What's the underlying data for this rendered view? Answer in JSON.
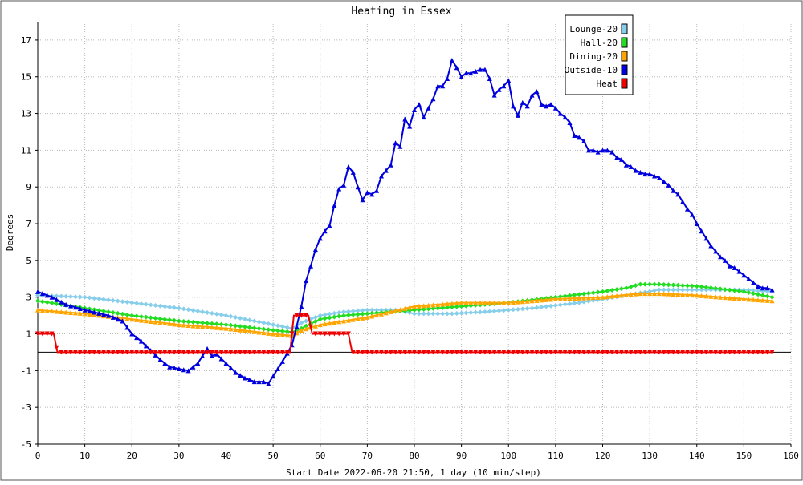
{
  "chart_data": {
    "type": "line",
    "title": "Heating in Essex",
    "xlabel": "Start Date 2022-06-20 21:50, 1 day (10 min/step)",
    "ylabel": "Degrees",
    "xlim": [
      0,
      160
    ],
    "ylim": [
      -5,
      18
    ],
    "x_ticks": [
      0,
      10,
      20,
      30,
      40,
      50,
      60,
      70,
      80,
      90,
      100,
      110,
      120,
      130,
      140,
      150,
      160
    ],
    "y_ticks": [
      -5,
      -3,
      -1,
      1,
      3,
      5,
      7,
      9,
      11,
      13,
      15,
      17
    ],
    "grid": true,
    "legend_position": "top-right",
    "series": [
      {
        "name": "Lounge-20",
        "color": "#87ceeb",
        "marker": "diamond",
        "keypoints": [
          [
            0,
            3.1
          ],
          [
            10,
            3.0
          ],
          [
            20,
            2.7
          ],
          [
            30,
            2.4
          ],
          [
            40,
            2.0
          ],
          [
            50,
            1.5
          ],
          [
            54,
            1.3
          ],
          [
            56,
            1.6
          ],
          [
            60,
            2.0
          ],
          [
            65,
            2.2
          ],
          [
            70,
            2.3
          ],
          [
            76,
            2.3
          ],
          [
            80,
            2.1
          ],
          [
            88,
            2.1
          ],
          [
            95,
            2.2
          ],
          [
            105,
            2.4
          ],
          [
            115,
            2.7
          ],
          [
            125,
            3.1
          ],
          [
            132,
            3.4
          ],
          [
            140,
            3.4
          ],
          [
            150,
            3.4
          ],
          [
            156,
            3.3
          ]
        ]
      },
      {
        "name": "Hall-20",
        "color": "#22dd22",
        "marker": "diamond",
        "keypoints": [
          [
            0,
            2.8
          ],
          [
            10,
            2.4
          ],
          [
            20,
            2.0
          ],
          [
            30,
            1.7
          ],
          [
            40,
            1.5
          ],
          [
            50,
            1.2
          ],
          [
            54,
            1.1
          ],
          [
            56,
            1.3
          ],
          [
            60,
            1.8
          ],
          [
            65,
            2.0
          ],
          [
            70,
            2.1
          ],
          [
            80,
            2.3
          ],
          [
            90,
            2.5
          ],
          [
            100,
            2.7
          ],
          [
            110,
            3.0
          ],
          [
            120,
            3.3
          ],
          [
            125,
            3.5
          ],
          [
            128,
            3.7
          ],
          [
            132,
            3.7
          ],
          [
            140,
            3.6
          ],
          [
            150,
            3.3
          ],
          [
            156,
            3.0
          ]
        ]
      },
      {
        "name": "Dining-20",
        "color": "#ffa500",
        "marker": "triangle",
        "keypoints": [
          [
            0,
            2.3
          ],
          [
            10,
            2.1
          ],
          [
            20,
            1.8
          ],
          [
            30,
            1.5
          ],
          [
            40,
            1.3
          ],
          [
            50,
            1.0
          ],
          [
            54,
            0.9
          ],
          [
            56,
            1.2
          ],
          [
            60,
            1.5
          ],
          [
            65,
            1.7
          ],
          [
            70,
            1.9
          ],
          [
            75,
            2.2
          ],
          [
            80,
            2.5
          ],
          [
            90,
            2.7
          ],
          [
            100,
            2.7
          ],
          [
            110,
            2.9
          ],
          [
            120,
            3.0
          ],
          [
            128,
            3.2
          ],
          [
            132,
            3.2
          ],
          [
            140,
            3.1
          ],
          [
            150,
            2.9
          ],
          [
            156,
            2.8
          ]
        ]
      },
      {
        "name": "Outside-10",
        "color": "#0000dd",
        "marker": "triangle",
        "keypoints": [
          [
            0,
            3.3
          ],
          [
            3,
            3.0
          ],
          [
            6,
            2.6
          ],
          [
            10,
            2.3
          ],
          [
            15,
            2.0
          ],
          [
            18,
            1.7
          ],
          [
            20,
            1.0
          ],
          [
            22,
            0.6
          ],
          [
            24,
            0.1
          ],
          [
            26,
            -0.4
          ],
          [
            28,
            -0.8
          ],
          [
            30,
            -0.9
          ],
          [
            32,
            -1.0
          ],
          [
            34,
            -0.6
          ],
          [
            36,
            0.2
          ],
          [
            37,
            -0.2
          ],
          [
            38,
            -0.1
          ],
          [
            40,
            -0.6
          ],
          [
            42,
            -1.1
          ],
          [
            44,
            -1.4
          ],
          [
            46,
            -1.6
          ],
          [
            48,
            -1.6
          ],
          [
            49,
            -1.7
          ],
          [
            50,
            -1.3
          ],
          [
            52,
            -0.5
          ],
          [
            54,
            0.4
          ],
          [
            55,
            1.4
          ],
          [
            56,
            2.5
          ],
          [
            57,
            3.9
          ],
          [
            58,
            4.7
          ],
          [
            59,
            5.6
          ],
          [
            60,
            6.2
          ],
          [
            61,
            6.6
          ],
          [
            62,
            6.9
          ],
          [
            63,
            8.0
          ],
          [
            64,
            8.9
          ],
          [
            65,
            9.1
          ],
          [
            66,
            10.1
          ],
          [
            67,
            9.8
          ],
          [
            68,
            9.0
          ],
          [
            69,
            8.3
          ],
          [
            70,
            8.7
          ],
          [
            71,
            8.6
          ],
          [
            72,
            8.8
          ],
          [
            73,
            9.6
          ],
          [
            74,
            9.9
          ],
          [
            75,
            10.2
          ],
          [
            76,
            11.4
          ],
          [
            77,
            11.2
          ],
          [
            78,
            12.7
          ],
          [
            79,
            12.3
          ],
          [
            80,
            13.2
          ],
          [
            81,
            13.5
          ],
          [
            82,
            12.8
          ],
          [
            83,
            13.3
          ],
          [
            84,
            13.8
          ],
          [
            85,
            14.5
          ],
          [
            86,
            14.5
          ],
          [
            87,
            14.9
          ],
          [
            88,
            15.9
          ],
          [
            89,
            15.5
          ],
          [
            90,
            15.0
          ],
          [
            91,
            15.2
          ],
          [
            92,
            15.2
          ],
          [
            93,
            15.3
          ],
          [
            94,
            15.4
          ],
          [
            95,
            15.4
          ],
          [
            96,
            14.9
          ],
          [
            97,
            14.0
          ],
          [
            98,
            14.3
          ],
          [
            99,
            14.5
          ],
          [
            100,
            14.8
          ],
          [
            101,
            13.4
          ],
          [
            102,
            12.9
          ],
          [
            103,
            13.6
          ],
          [
            104,
            13.4
          ],
          [
            105,
            14.0
          ],
          [
            106,
            14.2
          ],
          [
            107,
            13.5
          ],
          [
            108,
            13.4
          ],
          [
            109,
            13.5
          ],
          [
            110,
            13.3
          ],
          [
            111,
            13.0
          ],
          [
            112,
            12.8
          ],
          [
            113,
            12.5
          ],
          [
            114,
            11.8
          ],
          [
            115,
            11.7
          ],
          [
            116,
            11.5
          ],
          [
            117,
            11.0
          ],
          [
            118,
            11.0
          ],
          [
            119,
            10.9
          ],
          [
            120,
            11.0
          ],
          [
            121,
            11.0
          ],
          [
            122,
            10.9
          ],
          [
            123,
            10.6
          ],
          [
            124,
            10.5
          ],
          [
            125,
            10.2
          ],
          [
            126,
            10.1
          ],
          [
            127,
            9.9
          ],
          [
            128,
            9.8
          ],
          [
            129,
            9.7
          ],
          [
            130,
            9.7
          ],
          [
            131,
            9.6
          ],
          [
            132,
            9.5
          ],
          [
            133,
            9.3
          ],
          [
            134,
            9.1
          ],
          [
            135,
            8.8
          ],
          [
            136,
            8.6
          ],
          [
            137,
            8.2
          ],
          [
            138,
            7.8
          ],
          [
            139,
            7.5
          ],
          [
            140,
            7.0
          ],
          [
            141,
            6.6
          ],
          [
            142,
            6.2
          ],
          [
            143,
            5.8
          ],
          [
            144,
            5.5
          ],
          [
            145,
            5.2
          ],
          [
            146,
            5.0
          ],
          [
            147,
            4.7
          ],
          [
            148,
            4.6
          ],
          [
            149,
            4.4
          ],
          [
            150,
            4.2
          ],
          [
            151,
            4.0
          ],
          [
            152,
            3.8
          ],
          [
            153,
            3.6
          ],
          [
            154,
            3.5
          ],
          [
            155,
            3.5
          ],
          [
            156,
            3.4
          ]
        ]
      },
      {
        "name": "Heat",
        "color": "#ee0000",
        "marker": "triangle-down",
        "keypoints": [
          [
            0,
            1
          ],
          [
            3.4,
            1
          ],
          [
            4.2,
            0
          ],
          [
            53.6,
            0
          ],
          [
            54.4,
            2
          ],
          [
            57.5,
            2
          ],
          [
            58.3,
            1
          ],
          [
            66.0,
            1
          ],
          [
            66.8,
            0
          ],
          [
            156,
            0
          ]
        ]
      }
    ]
  },
  "legend": [
    {
      "label": "Lounge-20",
      "color": "#87ceeb"
    },
    {
      "label": "Hall-20",
      "color": "#22dd22"
    },
    {
      "label": "Dining-20",
      "color": "#ffa500"
    },
    {
      "label": "Outside-10",
      "color": "#0000dd"
    },
    {
      "label": "Heat",
      "color": "#ee0000"
    }
  ]
}
